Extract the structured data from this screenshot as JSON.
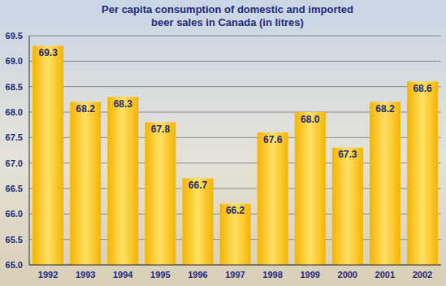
{
  "chart_data": {
    "type": "bar",
    "title": "Per capita consumption of domestic and imported beer sales in Canada (in litres)",
    "categories": [
      "1992",
      "1993",
      "1994",
      "1995",
      "1996",
      "1997",
      "1998",
      "1999",
      "2000",
      "2001",
      "2002"
    ],
    "values": [
      69.3,
      68.2,
      68.3,
      67.8,
      66.7,
      66.2,
      67.6,
      68.0,
      67.3,
      68.2,
      68.6
    ],
    "value_labels": [
      "69.3",
      "68.2",
      "68.3",
      "67.8",
      "66.7",
      "66.2",
      "67.6",
      "68.0",
      "67.3",
      "68.2",
      "68.6"
    ],
    "data_labels": true,
    "color": "#f5b400",
    "ylim": [
      65,
      69.5
    ],
    "yticks": [
      {
        "value": 65,
        "label": "65.0"
      },
      65.5,
      {
        "value": 66,
        "label": "66.0"
      },
      66.5,
      {
        "value": 67,
        "label": "67.0"
      },
      67.5,
      {
        "value": 68,
        "label": "68.0"
      },
      68.5,
      {
        "value": 69,
        "label": "69.0"
      },
      69.5
    ],
    "grid": true
  }
}
